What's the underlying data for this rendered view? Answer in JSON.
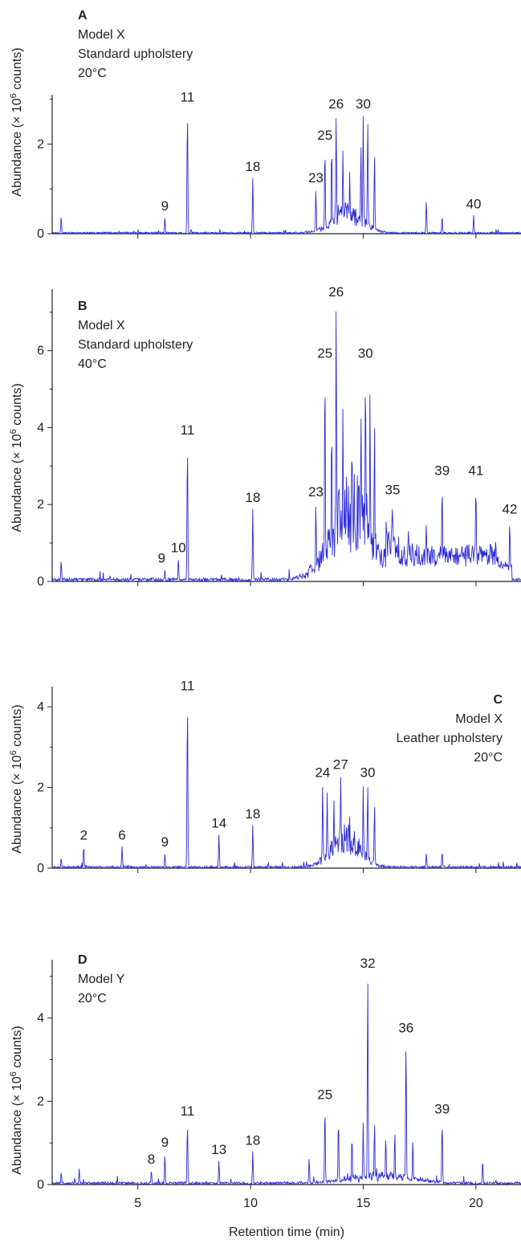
{
  "colors": {
    "trace": "#2b2bd9",
    "axis": "#222222",
    "text": "#222222"
  },
  "x_axis": {
    "label": "Retention time (min)",
    "range": [
      1.2,
      22.0
    ],
    "ticks": [
      5,
      10,
      15,
      20
    ]
  },
  "chart_data": [
    {
      "type": "line",
      "panel": "A",
      "info": [
        "Model X",
        "Standard upholstery",
        "20°C"
      ],
      "info_position": "top-left",
      "ylabel": "Abundance (× 10^6 counts)",
      "ylim": [
        0,
        3.1
      ],
      "yticks": [
        0,
        2
      ],
      "peaks": [
        {
          "x": 1.6,
          "y": 0.38
        },
        {
          "x": 6.2,
          "y": 0.38,
          "label": "9"
        },
        {
          "x": 7.2,
          "y": 2.8,
          "label": "11"
        },
        {
          "x": 10.1,
          "y": 1.25,
          "label": "18"
        },
        {
          "x": 12.9,
          "y": 1.0,
          "label": "23"
        },
        {
          "x": 13.3,
          "y": 1.95,
          "label": "25"
        },
        {
          "x": 13.6,
          "y": 2.0
        },
        {
          "x": 13.8,
          "y": 2.65,
          "label": "26"
        },
        {
          "x": 14.1,
          "y": 1.9
        },
        {
          "x": 14.4,
          "y": 1.4
        },
        {
          "x": 14.9,
          "y": 2.0
        },
        {
          "x": 15.0,
          "y": 2.65,
          "label": "30"
        },
        {
          "x": 15.2,
          "y": 2.55
        },
        {
          "x": 15.5,
          "y": 1.8
        },
        {
          "x": 17.8,
          "y": 0.75
        },
        {
          "x": 18.5,
          "y": 0.4
        },
        {
          "x": 19.9,
          "y": 0.42,
          "label": "40"
        }
      ]
    },
    {
      "type": "line",
      "panel": "B",
      "info": [
        "Model X",
        "Standard upholstery",
        "40°C"
      ],
      "info_position": "top-left",
      "ylabel": "Abundance (× 10^6 counts)",
      "ylim": [
        0,
        7.6
      ],
      "yticks": [
        0,
        2,
        4,
        6
      ],
      "peaks": [
        {
          "x": 1.6,
          "y": 0.55
        },
        {
          "x": 6.2,
          "y": 0.32,
          "label": "9"
        },
        {
          "x": 6.8,
          "y": 0.6,
          "label": "10"
        },
        {
          "x": 7.2,
          "y": 3.65,
          "label": "11"
        },
        {
          "x": 10.1,
          "y": 1.9,
          "label": "18"
        },
        {
          "x": 12.9,
          "y": 2.05,
          "label": "23"
        },
        {
          "x": 13.3,
          "y": 5.65,
          "label": "25"
        },
        {
          "x": 13.6,
          "y": 4.2
        },
        {
          "x": 13.8,
          "y": 7.25,
          "label": "26"
        },
        {
          "x": 14.1,
          "y": 4.6
        },
        {
          "x": 14.5,
          "y": 3.8
        },
        {
          "x": 14.9,
          "y": 4.4
        },
        {
          "x": 15.1,
          "y": 5.65,
          "label": "30"
        },
        {
          "x": 15.3,
          "y": 4.9
        },
        {
          "x": 15.5,
          "y": 4.2
        },
        {
          "x": 16.3,
          "y": 2.1,
          "label": "35"
        },
        {
          "x": 17.0,
          "y": 1.45
        },
        {
          "x": 17.8,
          "y": 1.55
        },
        {
          "x": 18.5,
          "y": 2.6,
          "label": "39"
        },
        {
          "x": 20.0,
          "y": 2.6,
          "label": "41"
        },
        {
          "x": 21.5,
          "y": 1.6,
          "label": "42"
        }
      ]
    },
    {
      "type": "line",
      "panel": "C",
      "info": [
        "Model X",
        "Leather upholstery",
        "20°C"
      ],
      "info_position": "top-right",
      "ylabel": "Abundance (× 10^6 counts)",
      "ylim": [
        0,
        4.5
      ],
      "yticks": [
        0,
        2,
        4
      ],
      "peaks": [
        {
          "x": 1.6,
          "y": 0.25
        },
        {
          "x": 2.6,
          "y": 0.55,
          "label": "2"
        },
        {
          "x": 4.3,
          "y": 0.55,
          "label": "6"
        },
        {
          "x": 6.2,
          "y": 0.38,
          "label": "9"
        },
        {
          "x": 7.2,
          "y": 4.25,
          "label": "11"
        },
        {
          "x": 8.6,
          "y": 0.85,
          "label": "14"
        },
        {
          "x": 10.1,
          "y": 1.08,
          "label": "18"
        },
        {
          "x": 13.2,
          "y": 2.1,
          "label": "24"
        },
        {
          "x": 13.4,
          "y": 1.9
        },
        {
          "x": 13.7,
          "y": 1.7
        },
        {
          "x": 14.0,
          "y": 2.3,
          "label": "27"
        },
        {
          "x": 14.4,
          "y": 1.3
        },
        {
          "x": 15.0,
          "y": 2.05
        },
        {
          "x": 15.2,
          "y": 2.1,
          "label": "30"
        },
        {
          "x": 15.5,
          "y": 1.6
        },
        {
          "x": 17.8,
          "y": 0.38
        },
        {
          "x": 18.5,
          "y": 0.42
        }
      ]
    },
    {
      "type": "line",
      "panel": "D",
      "info": [
        "Model Y",
        "20°C"
      ],
      "info_position": "top-left",
      "ylabel": "Abundance (× 10^6 counts)",
      "xlabel": "Retention time (min)",
      "ylim": [
        0,
        5.4
      ],
      "yticks": [
        0,
        2,
        4
      ],
      "peaks": [
        {
          "x": 1.6,
          "y": 0.3
        },
        {
          "x": 2.4,
          "y": 0.38
        },
        {
          "x": 5.6,
          "y": 0.35,
          "label": "8"
        },
        {
          "x": 6.2,
          "y": 0.75,
          "label": "9"
        },
        {
          "x": 7.2,
          "y": 1.5,
          "label": "11"
        },
        {
          "x": 8.6,
          "y": 0.58,
          "label": "13"
        },
        {
          "x": 10.1,
          "y": 0.8,
          "label": "18"
        },
        {
          "x": 12.6,
          "y": 0.65
        },
        {
          "x": 13.3,
          "y": 1.9,
          "label": "25"
        },
        {
          "x": 13.9,
          "y": 1.6
        },
        {
          "x": 14.5,
          "y": 1.2
        },
        {
          "x": 15.0,
          "y": 1.5
        },
        {
          "x": 15.2,
          "y": 5.05,
          "label": "32"
        },
        {
          "x": 15.5,
          "y": 1.5
        },
        {
          "x": 16.0,
          "y": 1.2
        },
        {
          "x": 16.4,
          "y": 1.3
        },
        {
          "x": 16.9,
          "y": 3.5,
          "label": "36"
        },
        {
          "x": 17.2,
          "y": 1.1
        },
        {
          "x": 18.5,
          "y": 1.55,
          "label": "39"
        },
        {
          "x": 20.3,
          "y": 0.6
        }
      ]
    }
  ]
}
